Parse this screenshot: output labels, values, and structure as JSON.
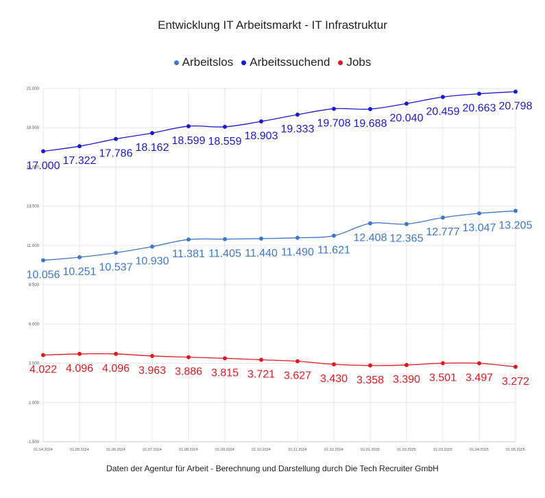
{
  "chart_data": {
    "type": "line",
    "title": "Entwicklung IT Arbeitsmarkt  - IT Infrastruktur",
    "xlabel": "",
    "ylabel": "",
    "footer": "Daten der Agentur für Arbeit - Berechnung und Darstellung durch Die Tech Recruiter GmbH",
    "x": [
      "01.04.2024",
      "01.05.2024",
      "01.06.2024",
      "01.07.2024",
      "01.08.2024",
      "01.09.2024",
      "01.10.2024",
      "01.11.2024",
      "01.12.2024",
      "01.01.2025",
      "01.02.2025",
      "01.03.2025",
      "01.04.2025",
      "01.05.2025"
    ],
    "ylim": [
      -1500,
      21000
    ],
    "yticks": [
      "-1.500",
      "1.000",
      "3.500",
      "6.000",
      "8.500",
      "11.000",
      "13.500",
      "16.000",
      "18.500",
      "21.000"
    ],
    "grid": true,
    "legend_position": "top",
    "series": [
      {
        "name": "Arbeitslos",
        "color": "#3b78c9",
        "values": [
          10056,
          10251,
          10537,
          10930,
          11381,
          11405,
          11440,
          11490,
          11621,
          12408,
          12365,
          12777,
          13047,
          13205
        ],
        "labels": [
          "10.056",
          "10.251",
          "10.537",
          "10.930",
          "11.381",
          "11.405",
          "11.440",
          "11.490",
          "11.621",
          "12.408",
          "12.365",
          "12.777",
          "13.047",
          "13.205"
        ]
      },
      {
        "name": "Arbeitssuchend",
        "color": "#1a1acc",
        "values": [
          17000,
          17322,
          17786,
          18162,
          18599,
          18559,
          18903,
          19333,
          19708,
          19688,
          20040,
          20459,
          20663,
          20798
        ],
        "labels": [
          "17.000",
          "17.322",
          "17.786",
          "18.162",
          "18.599",
          "18.559",
          "18.903",
          "19.333",
          "19.708",
          "19.688",
          "20.040",
          "20.459",
          "20.663",
          "20.798"
        ]
      },
      {
        "name": "Jobs",
        "color": "#e0191f",
        "values": [
          4022,
          4096,
          4096,
          3963,
          3886,
          3815,
          3721,
          3627,
          3430,
          3358,
          3390,
          3501,
          3497,
          3272
        ],
        "labels": [
          "4.022",
          "4.096",
          "4.096",
          "3.963",
          "3.886",
          "3.815",
          "3.721",
          "3.627",
          "3.430",
          "3.358",
          "3.390",
          "3.501",
          "3.497",
          "3.272"
        ]
      }
    ]
  }
}
